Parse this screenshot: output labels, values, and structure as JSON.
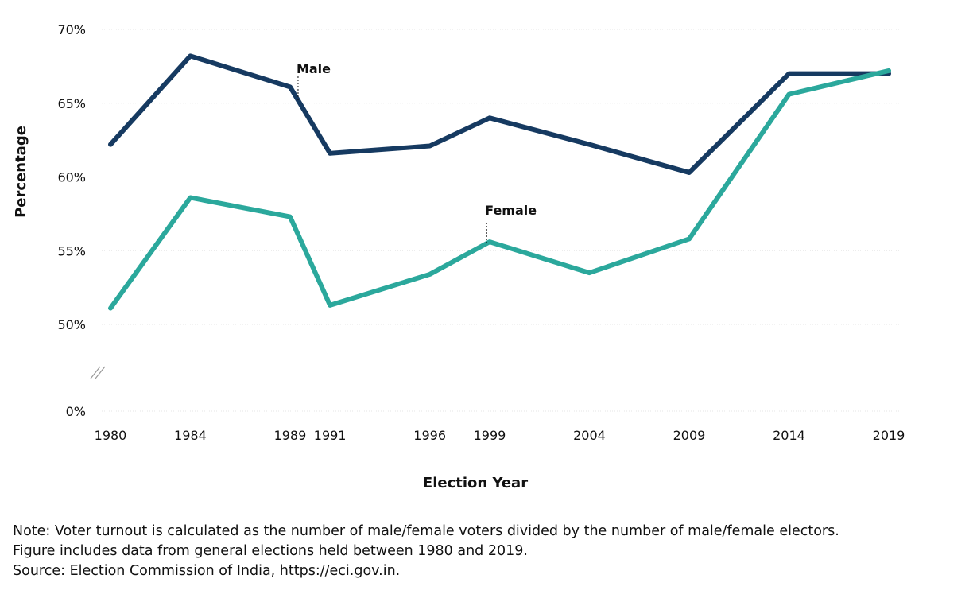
{
  "chart_data": {
    "type": "line",
    "xlabel": "Election Year",
    "ylabel": "Percentage",
    "x": [
      "1980",
      "1984",
      "1989",
      "1991",
      "1996",
      "1999",
      "2004",
      "2009",
      "2014",
      "2019"
    ],
    "yticks": [
      "0%",
      "50%",
      "55%",
      "60%",
      "65%",
      "70%"
    ],
    "ylim": [
      50,
      70
    ],
    "axis_break": true,
    "grid": "horizontal",
    "series": [
      {
        "name": "Male",
        "color": "#163a61",
        "values": [
          62.2,
          68.2,
          66.1,
          61.6,
          62.1,
          64.0,
          62.2,
          60.3,
          67.0,
          67.0
        ]
      },
      {
        "name": "Female",
        "color": "#2ba89c",
        "values": [
          51.1,
          58.6,
          57.3,
          51.3,
          53.4,
          55.6,
          53.5,
          55.8,
          65.6,
          67.2
        ]
      }
    ]
  },
  "notes": [
    "Note: Voter turnout is calculated as the number of male/female voters divided by the number of male/female electors.",
    "Figure includes data from general elections held between 1980 and 2019.",
    "Source: Election Commission of India, https://eci.gov.in."
  ]
}
